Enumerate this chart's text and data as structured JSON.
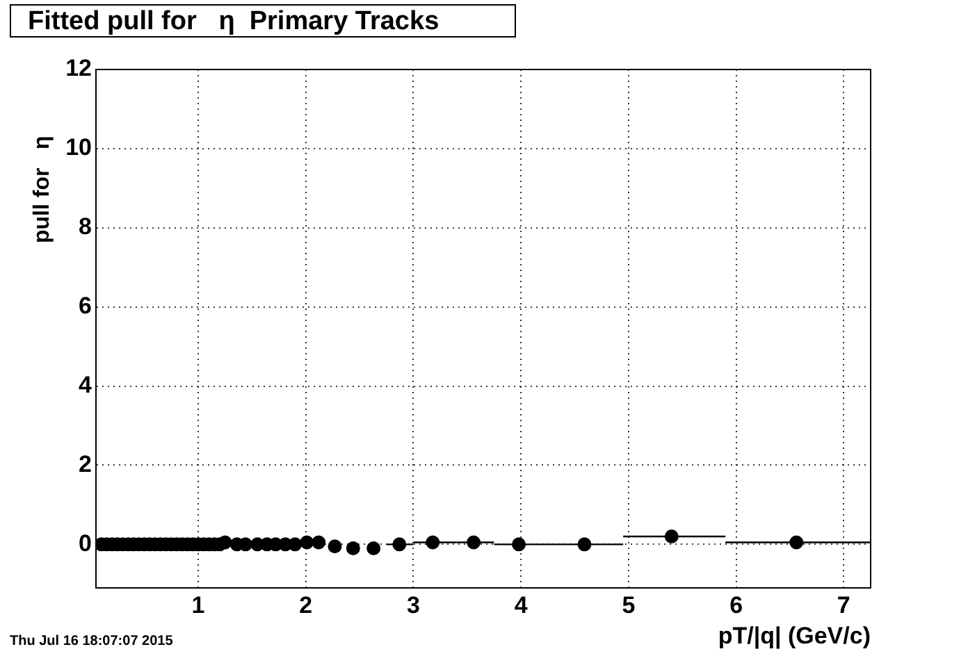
{
  "chart_data": {
    "type": "scatter",
    "title": "Fitted pull for   η  Primary Tracks",
    "xlabel": "pT/|q| (GeV/c)",
    "ylabel": "pull for   η",
    "annotations": [
      "Thu Jul 16 18:07:07 2015"
    ],
    "x": [
      0.1,
      0.15,
      0.2,
      0.25,
      0.3,
      0.35,
      0.4,
      0.45,
      0.5,
      0.55,
      0.6,
      0.65,
      0.7,
      0.75,
      0.8,
      0.85,
      0.9,
      0.95,
      1.0,
      1.05,
      1.1,
      1.15,
      1.2,
      1.25,
      1.36,
      1.44,
      1.55,
      1.64,
      1.72,
      1.81,
      1.9,
      2.01,
      2.12,
      2.27,
      2.44,
      2.63,
      2.87,
      3.18,
      3.56,
      3.98,
      4.59,
      5.4,
      6.56
    ],
    "series": [
      {
        "color": "#000000",
        "values": [
          0,
          0,
          0,
          0,
          0,
          0,
          0,
          0,
          0,
          0,
          0,
          0,
          0,
          0,
          0,
          0,
          0,
          0,
          0,
          0,
          0,
          0,
          0,
          0.05,
          0,
          0,
          0,
          0,
          0,
          0,
          0,
          0.05,
          0.05,
          -0.05,
          -0.1,
          -0.1,
          0,
          0.05,
          0.05,
          0,
          0,
          0.2,
          0.05
        ],
        "xerrors": [
          null,
          null,
          null,
          null,
          null,
          null,
          null,
          null,
          null,
          null,
          null,
          null,
          null,
          null,
          null,
          null,
          null,
          null,
          null,
          null,
          null,
          null,
          null,
          null,
          null,
          null,
          null,
          null,
          null,
          null,
          null,
          null,
          null,
          null,
          null,
          null,
          [
            2.75,
            3.0
          ],
          [
            3.0,
            3.4
          ],
          [
            3.4,
            3.75
          ],
          [
            3.75,
            4.3
          ],
          [
            4.3,
            4.95
          ],
          [
            4.95,
            5.9
          ],
          [
            5.9,
            7.25
          ]
        ]
      }
    ],
    "xlim": [
      0.05,
      7.25
    ],
    "xticks": [
      1,
      2,
      3,
      4,
      5,
      6,
      7
    ],
    "ylim": [
      -1.1,
      12
    ],
    "yticks": [
      0,
      2,
      4,
      6,
      8,
      10,
      12
    ],
    "grid": true,
    "marker": "circle",
    "legend": false
  }
}
